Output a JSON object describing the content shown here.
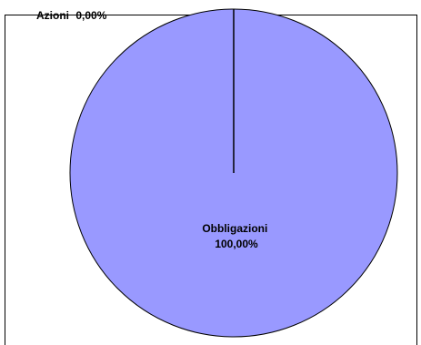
{
  "chart_data": {
    "type": "pie",
    "title": "",
    "slices": [
      {
        "label": "Azioni",
        "value": 0.0,
        "value_text": "0,00%",
        "color": "#9999ff"
      },
      {
        "label": "Obbligazioni",
        "value": 100.0,
        "value_text": "100,00%",
        "color": "#9999ff"
      }
    ],
    "slice_border_color": "#000000",
    "legend": "none"
  }
}
